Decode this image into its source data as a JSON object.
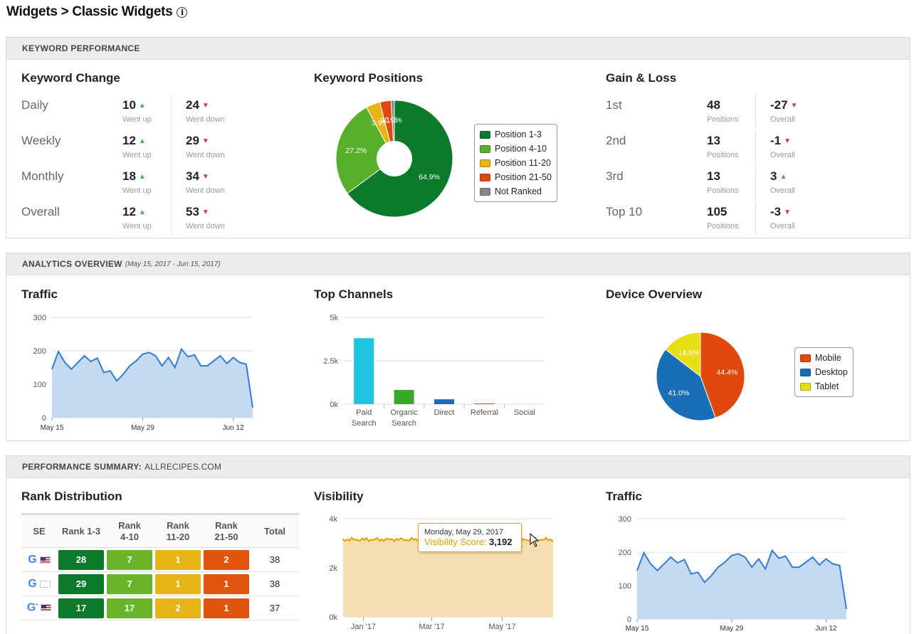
{
  "page": {
    "title": "Widgets > Classic Widgets",
    "info_icon": "info-icon"
  },
  "keyword_performance": {
    "header": "KEYWORD PERFORMANCE",
    "keyword_change": {
      "title": "Keyword Change",
      "rows": [
        {
          "label": "Daily",
          "up": "10",
          "up_label": "Went up",
          "down": "24",
          "down_label": "Went down"
        },
        {
          "label": "Weekly",
          "up": "12",
          "up_label": "Went up",
          "down": "29",
          "down_label": "Went down"
        },
        {
          "label": "Monthly",
          "up": "18",
          "up_label": "Went up",
          "down": "34",
          "down_label": "Went down"
        },
        {
          "label": "Overall",
          "up": "12",
          "up_label": "Went up",
          "down": "53",
          "down_label": "Went down"
        }
      ]
    },
    "keyword_positions": {
      "title": "Keyword Positions",
      "legend": [
        "Position 1-3",
        "Position 4-10",
        "Position 11-20",
        "Position 21-50",
        "Not Ranked"
      ],
      "colors": [
        "#0b7a2a",
        "#58b02a",
        "#e6b416",
        "#e0480e",
        "#888888"
      ]
    },
    "gain_loss": {
      "title": "Gain & Loss",
      "rows": [
        {
          "label": "1st",
          "value": "48",
          "value_label": "Positions",
          "overall": "-27",
          "overall_label": "Overall",
          "dir": "down"
        },
        {
          "label": "2nd",
          "value": "13",
          "value_label": "Positions",
          "overall": "-1",
          "overall_label": "Overall",
          "dir": "down"
        },
        {
          "label": "3rd",
          "value": "13",
          "value_label": "Positions",
          "overall": "3",
          "overall_label": "Overall",
          "dir": "up"
        },
        {
          "label": "Top 10",
          "value": "105",
          "value_label": "Positions",
          "overall": "-3",
          "overall_label": "Overall",
          "dir": "down"
        }
      ]
    }
  },
  "analytics": {
    "header": "ANALYTICS OVERVIEW",
    "date_range": "(May 15, 2017 - Jun 15, 2017)",
    "traffic_title": "Traffic",
    "channels_title": "Top Channels",
    "device_title": "Device Overview",
    "device_legend": [
      "Mobile",
      "Desktop",
      "Tablet"
    ],
    "device_colors": [
      "#e0480e",
      "#1a6eb5",
      "#e6df14"
    ]
  },
  "performance_summary": {
    "header": "PERFORMANCE SUMMARY:",
    "domain": "ALLRECIPES.COM",
    "rank_distribution": {
      "title": "Rank Distribution",
      "columns": [
        "SE",
        "Rank 1-3",
        "Rank 4-10",
        "Rank 11-20",
        "Rank 21-50",
        "Total"
      ],
      "rows": [
        {
          "se": "google-desktop-us",
          "flag": "us",
          "r13": "28",
          "r410": "7",
          "r1120": "1",
          "r2150": "2",
          "total": "38"
        },
        {
          "se": "google-desktop",
          "flag": "blank",
          "r13": "29",
          "r410": "7",
          "r1120": "1",
          "r2150": "1",
          "total": "38"
        },
        {
          "se": "google-mobile-us",
          "flag": "us",
          "r13": "17",
          "r410": "17",
          "r1120": "2",
          "r2150": "1",
          "total": "37"
        }
      ],
      "colors": {
        "r13": "#0b7a2a",
        "r410": "#6ab42a",
        "r1120": "#e6b416",
        "r2150": "#e0540e"
      }
    },
    "visibility": {
      "title": "Visibility",
      "tooltip_date": "Monday, May 29, 2017",
      "tooltip_label": "Visibility Score:",
      "tooltip_value": "3,192"
    },
    "traffic_title": "Traffic"
  },
  "chart_data": [
    {
      "type": "pie",
      "title": "Keyword Positions",
      "categories": [
        "Position 1-3",
        "Position 4-10",
        "Position 11-20",
        "Position 21-50",
        "Not Ranked"
      ],
      "values": [
        64.9,
        27.2,
        3.9,
        3.1,
        0.9
      ],
      "labels": [
        "64.9%",
        "27.2%",
        "3.9%",
        "3.1%",
        "0.9%"
      ],
      "donut": true,
      "legend": "right"
    },
    {
      "type": "area",
      "title": "Traffic",
      "x": [
        "May 15",
        "May 16",
        "May 17",
        "May 18",
        "May 19",
        "May 20",
        "May 21",
        "May 22",
        "May 23",
        "May 24",
        "May 25",
        "May 26",
        "May 27",
        "May 28",
        "May 29",
        "May 30",
        "May 31",
        "Jun 1",
        "Jun 2",
        "Jun 3",
        "Jun 4",
        "Jun 5",
        "Jun 6",
        "Jun 7",
        "Jun 8",
        "Jun 9",
        "Jun 10",
        "Jun 11",
        "Jun 12",
        "Jun 13",
        "Jun 14",
        "Jun 15"
      ],
      "values": [
        145,
        198,
        165,
        145,
        165,
        185,
        168,
        178,
        135,
        140,
        110,
        130,
        155,
        170,
        190,
        195,
        185,
        155,
        180,
        150,
        205,
        182,
        188,
        155,
        155,
        170,
        185,
        162,
        180,
        165,
        160,
        30
      ],
      "xticks": [
        "May 15",
        "May 29",
        "Jun 12"
      ],
      "yticks": [
        "0",
        "100",
        "200",
        "300"
      ],
      "ylim": [
        0,
        300
      ]
    },
    {
      "type": "bar",
      "title": "Top Channels",
      "categories": [
        "Paid Search",
        "Organic Search",
        "Direct",
        "Referral",
        "Social"
      ],
      "values": [
        3800,
        820,
        280,
        40,
        0
      ],
      "colors": [
        "#1fc5e0",
        "#3aa82a",
        "#1a6eb5",
        "#e0480e",
        "#888888"
      ],
      "yticks": [
        "0k",
        "2.5k",
        "5k"
      ],
      "ylim": [
        0,
        5000
      ]
    },
    {
      "type": "pie",
      "title": "Device Overview",
      "categories": [
        "Mobile",
        "Desktop",
        "Tablet"
      ],
      "values": [
        44.4,
        41.0,
        14.5
      ],
      "labels": [
        "44.4%",
        "41.0%",
        "14.5%"
      ],
      "legend": "right"
    },
    {
      "type": "area",
      "title": "Visibility",
      "xticks": [
        "Jan '17",
        "Mar '17",
        "May '17"
      ],
      "yticks": [
        "0k",
        "2k",
        "4k"
      ],
      "ylim": [
        0,
        4000
      ],
      "level": 3150
    },
    {
      "type": "area",
      "title": "Traffic",
      "values": [
        145,
        198,
        165,
        145,
        165,
        185,
        168,
        178,
        135,
        140,
        110,
        130,
        155,
        170,
        190,
        195,
        185,
        155,
        180,
        150,
        205,
        182,
        188,
        155,
        155,
        170,
        185,
        162,
        180,
        165,
        160,
        30
      ],
      "xticks": [
        "May 15",
        "May 29",
        "Jun 12"
      ],
      "yticks": [
        "0",
        "100",
        "200",
        "300"
      ],
      "ylim": [
        0,
        300
      ]
    }
  ]
}
